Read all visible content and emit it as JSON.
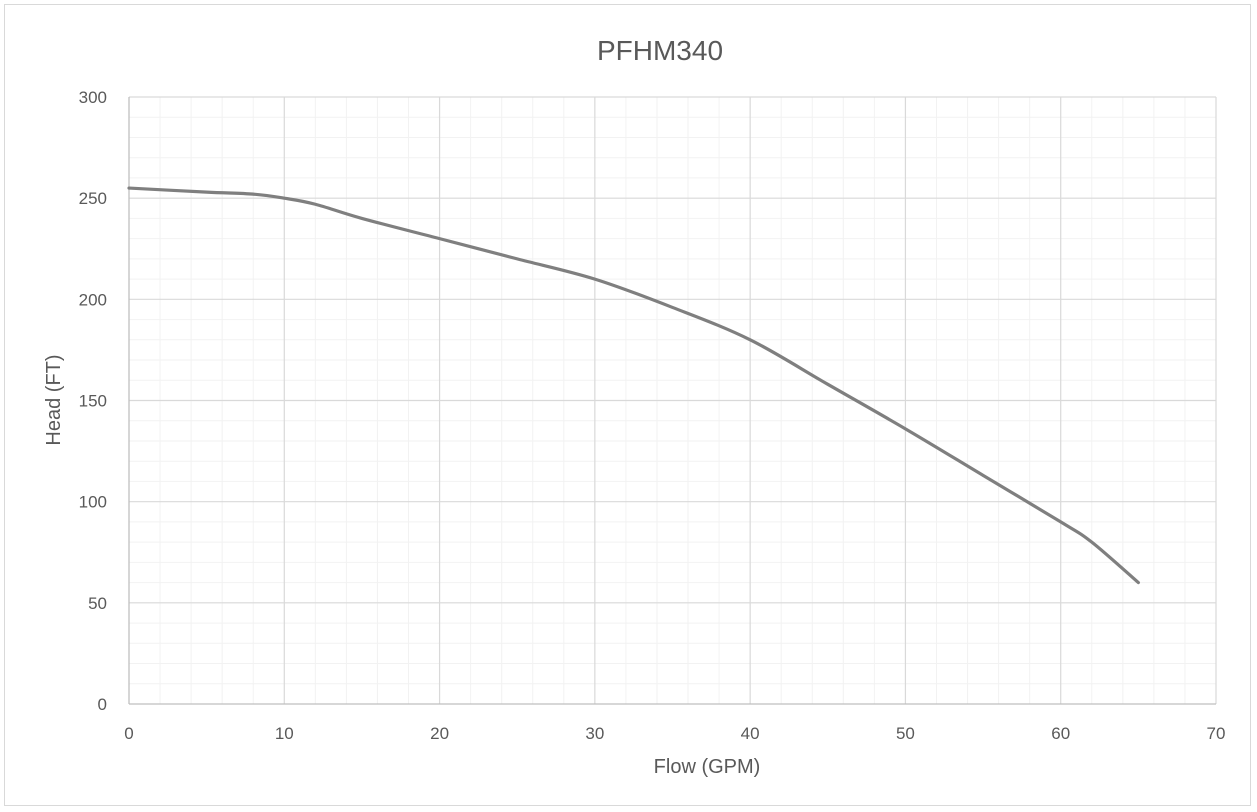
{
  "chart_data": {
    "type": "line",
    "title": "PFHM340",
    "xlabel": "Flow (GPM)",
    "ylabel": "Head (FT)",
    "xlim": [
      0,
      70
    ],
    "ylim": [
      0,
      300
    ],
    "x_ticks": [
      0,
      10,
      20,
      30,
      40,
      50,
      60,
      70
    ],
    "y_ticks": [
      0,
      50,
      100,
      150,
      200,
      250,
      300
    ],
    "x_minor_step": 2,
    "y_minor_step": 10,
    "grid": true,
    "legend": "none",
    "series": [
      {
        "x": [
          0,
          5,
          8,
          10,
          12,
          15,
          20,
          25,
          30,
          35,
          40,
          45,
          50,
          55,
          60,
          62,
          65
        ],
        "values": [
          255,
          253,
          252,
          250,
          247,
          240,
          230,
          220,
          210,
          196,
          180,
          158,
          136,
          113,
          90,
          80,
          60
        ],
        "color": "#7f7f7f"
      }
    ]
  }
}
